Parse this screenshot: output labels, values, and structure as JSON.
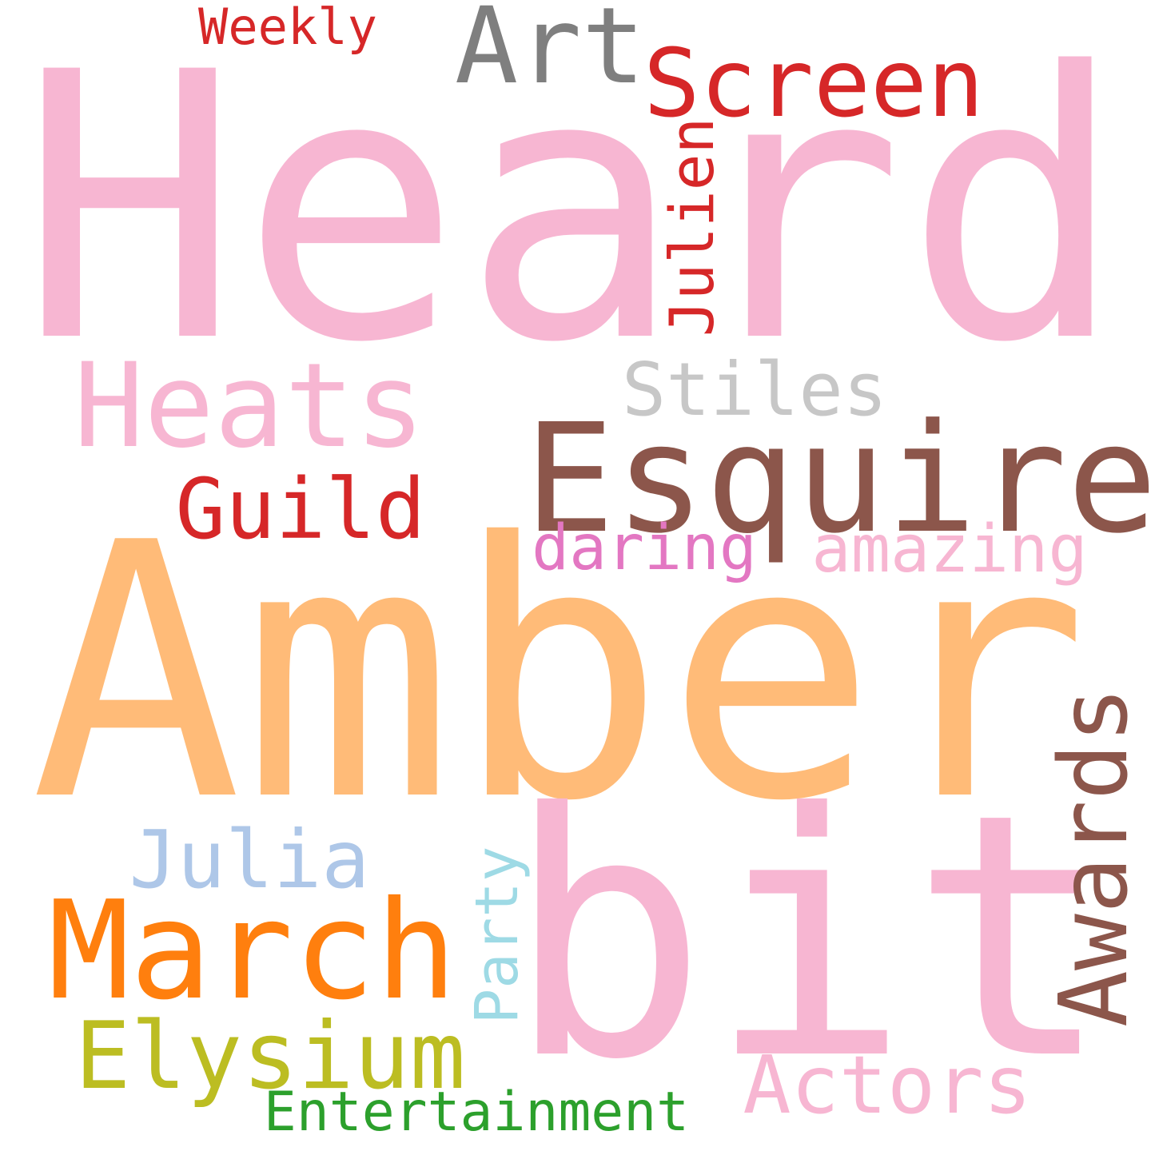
{
  "cloud": {
    "background": "#ffffff",
    "words": {
      "heard": {
        "text": "Heard",
        "color": "#f7b6d2",
        "orientation": "horizontal"
      },
      "amber": {
        "text": "Amber",
        "color": "#ffbb78",
        "orientation": "horizontal"
      },
      "bit": {
        "text": "bit",
        "color": "#f7b6d2",
        "orientation": "horizontal"
      },
      "esquire": {
        "text": "Esquire",
        "color": "#8c564b",
        "orientation": "horizontal"
      },
      "march": {
        "text": "March",
        "color": "#ff7f0e",
        "orientation": "horizontal"
      },
      "heats": {
        "text": "Heats",
        "color": "#f7b6d2",
        "orientation": "horizontal"
      },
      "art": {
        "text": "Art",
        "color": "#7f7f7f",
        "orientation": "horizontal"
      },
      "screen": {
        "text": "Screen",
        "color": "#d62728",
        "orientation": "horizontal"
      },
      "elysium": {
        "text": "Elysium",
        "color": "#bcbd22",
        "orientation": "horizontal"
      },
      "awards": {
        "text": "Awards",
        "color": "#8c564b",
        "orientation": "vertical"
      },
      "guild": {
        "text": "Guild",
        "color": "#d62728",
        "orientation": "horizontal"
      },
      "julia": {
        "text": "Julia",
        "color": "#aec7e8",
        "orientation": "horizontal"
      },
      "actors": {
        "text": "Actors",
        "color": "#f7b6d2",
        "orientation": "horizontal"
      },
      "stiles": {
        "text": "Stiles",
        "color": "#c7c7c7",
        "orientation": "horizontal"
      },
      "julien": {
        "text": "Julien",
        "color": "#d62728",
        "orientation": "vertical"
      },
      "party": {
        "text": "Party",
        "color": "#9edae5",
        "orientation": "vertical"
      },
      "amazing": {
        "text": "amazing",
        "color": "#f7b6d2",
        "orientation": "horizontal"
      },
      "daring": {
        "text": "daring",
        "color": "#e377c2",
        "orientation": "horizontal"
      },
      "entertainment": {
        "text": "Entertainment",
        "color": "#2ca02c",
        "orientation": "horizontal"
      },
      "weekly": {
        "text": "Weekly",
        "color": "#d62728",
        "orientation": "horizontal"
      }
    }
  }
}
